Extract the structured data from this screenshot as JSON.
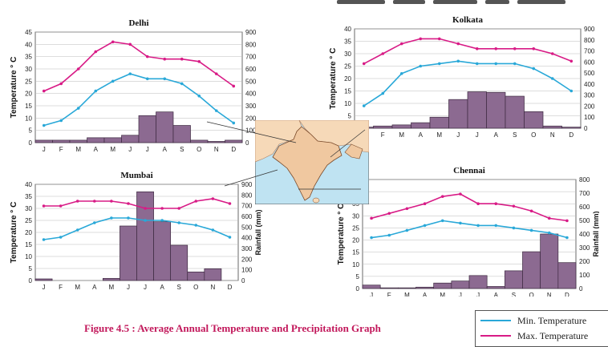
{
  "page": {
    "caption": "Figure 4.5 : Average Annual Temperature and Precipitation Graph",
    "legend": [
      {
        "label": "Min. Temperature",
        "color": "#29a8d8"
      },
      {
        "label": "Max. Temperature",
        "color": "#d81b86"
      }
    ]
  },
  "chart_data": [
    {
      "type": "bar+line",
      "title": "Delhi",
      "categories": [
        "J",
        "F",
        "M",
        "A",
        "M",
        "J",
        "J",
        "A",
        "S",
        "O",
        "N",
        "D"
      ],
      "ylabel": "Temperature ° C",
      "y2label": "Rainfall (mm)",
      "ylim": [
        0,
        45
      ],
      "yticks": [
        0,
        5,
        10,
        15,
        20,
        25,
        30,
        35,
        40,
        45
      ],
      "y2lim": [
        0,
        900
      ],
      "y2ticks": [
        0,
        100,
        200,
        300,
        400,
        500,
        600,
        700,
        800,
        900
      ],
      "rainfall": [
        20,
        20,
        20,
        40,
        40,
        60,
        220,
        250,
        140,
        20,
        10,
        20
      ],
      "min_temp": [
        7,
        9,
        14,
        21,
        25,
        28,
        26,
        26,
        24,
        19,
        13,
        8
      ],
      "max_temp": [
        21,
        24,
        30,
        37,
        41,
        40,
        35,
        34,
        34,
        33,
        28,
        23
      ]
    },
    {
      "type": "bar+line",
      "title": "Kolkata",
      "categories": [
        "J",
        "F",
        "M",
        "A",
        "M",
        "J",
        "J",
        "A",
        "S",
        "O",
        "N",
        "D"
      ],
      "ylabel": "Temperature ° C",
      "y2label": "Rainfall (mm)",
      "ylim": [
        0,
        40
      ],
      "yticks": [
        0,
        5,
        10,
        15,
        20,
        25,
        30,
        35,
        40
      ],
      "y2lim": [
        0,
        900
      ],
      "y2ticks": [
        0,
        100,
        200,
        300,
        400,
        500,
        600,
        700,
        800,
        900
      ],
      "rainfall": [
        10,
        20,
        30,
        50,
        100,
        260,
        330,
        325,
        290,
        150,
        20,
        10
      ],
      "min_temp": [
        9,
        14,
        22,
        25,
        26,
        27,
        26,
        26,
        26,
        24,
        20,
        15
      ],
      "max_temp": [
        26,
        30,
        34,
        36,
        36,
        34,
        32,
        32,
        32,
        32,
        30,
        27
      ]
    },
    {
      "type": "bar+line",
      "title": "Mumbai",
      "categories": [
        "J",
        "F",
        "M",
        "A",
        "M",
        "J",
        "J",
        "A",
        "S",
        "O",
        "N",
        "D"
      ],
      "ylabel": "Temperature ° C",
      "y2label": "Rainfall (mm)",
      "ylim": [
        0,
        40
      ],
      "yticks": [
        0,
        5,
        10,
        15,
        20,
        25,
        30,
        35,
        40
      ],
      "y2lim": [
        0,
        900
      ],
      "y2ticks": [
        0,
        100,
        200,
        300,
        400,
        500,
        600,
        700,
        800,
        900
      ],
      "rainfall": [
        15,
        0,
        0,
        0,
        20,
        510,
        830,
        550,
        330,
        80,
        110,
        0
      ],
      "min_temp": [
        17,
        18,
        21,
        24,
        26,
        26,
        25,
        25,
        24,
        23,
        21,
        18
      ],
      "max_temp": [
        31,
        31,
        33,
        33,
        33,
        32,
        30,
        30,
        30,
        33,
        34,
        32
      ]
    },
    {
      "type": "bar+line",
      "title": "Chennai",
      "categories": [
        "J",
        "F",
        "M",
        "A",
        "M",
        "J",
        "J",
        "A",
        "S",
        "O",
        "N",
        "D"
      ],
      "ylabel": "Temperature ° C",
      "y2label": "Rainfall (mm)",
      "ylim": [
        0,
        45
      ],
      "yticks": [
        0,
        5,
        10,
        15,
        20,
        25,
        30,
        35,
        40,
        45
      ],
      "y2lim": [
        0,
        800
      ],
      "y2ticks": [
        0,
        100,
        200,
        300,
        400,
        500,
        600,
        700,
        800
      ],
      "rainfall": [
        25,
        5,
        5,
        10,
        40,
        55,
        95,
        15,
        130,
        270,
        400,
        190
      ],
      "min_temp": [
        21,
        22,
        24,
        26,
        28,
        27,
        26,
        26,
        25,
        24,
        23,
        21
      ],
      "max_temp": [
        29,
        31,
        33,
        35,
        38,
        39,
        35,
        35,
        34,
        32,
        29,
        28
      ]
    }
  ]
}
